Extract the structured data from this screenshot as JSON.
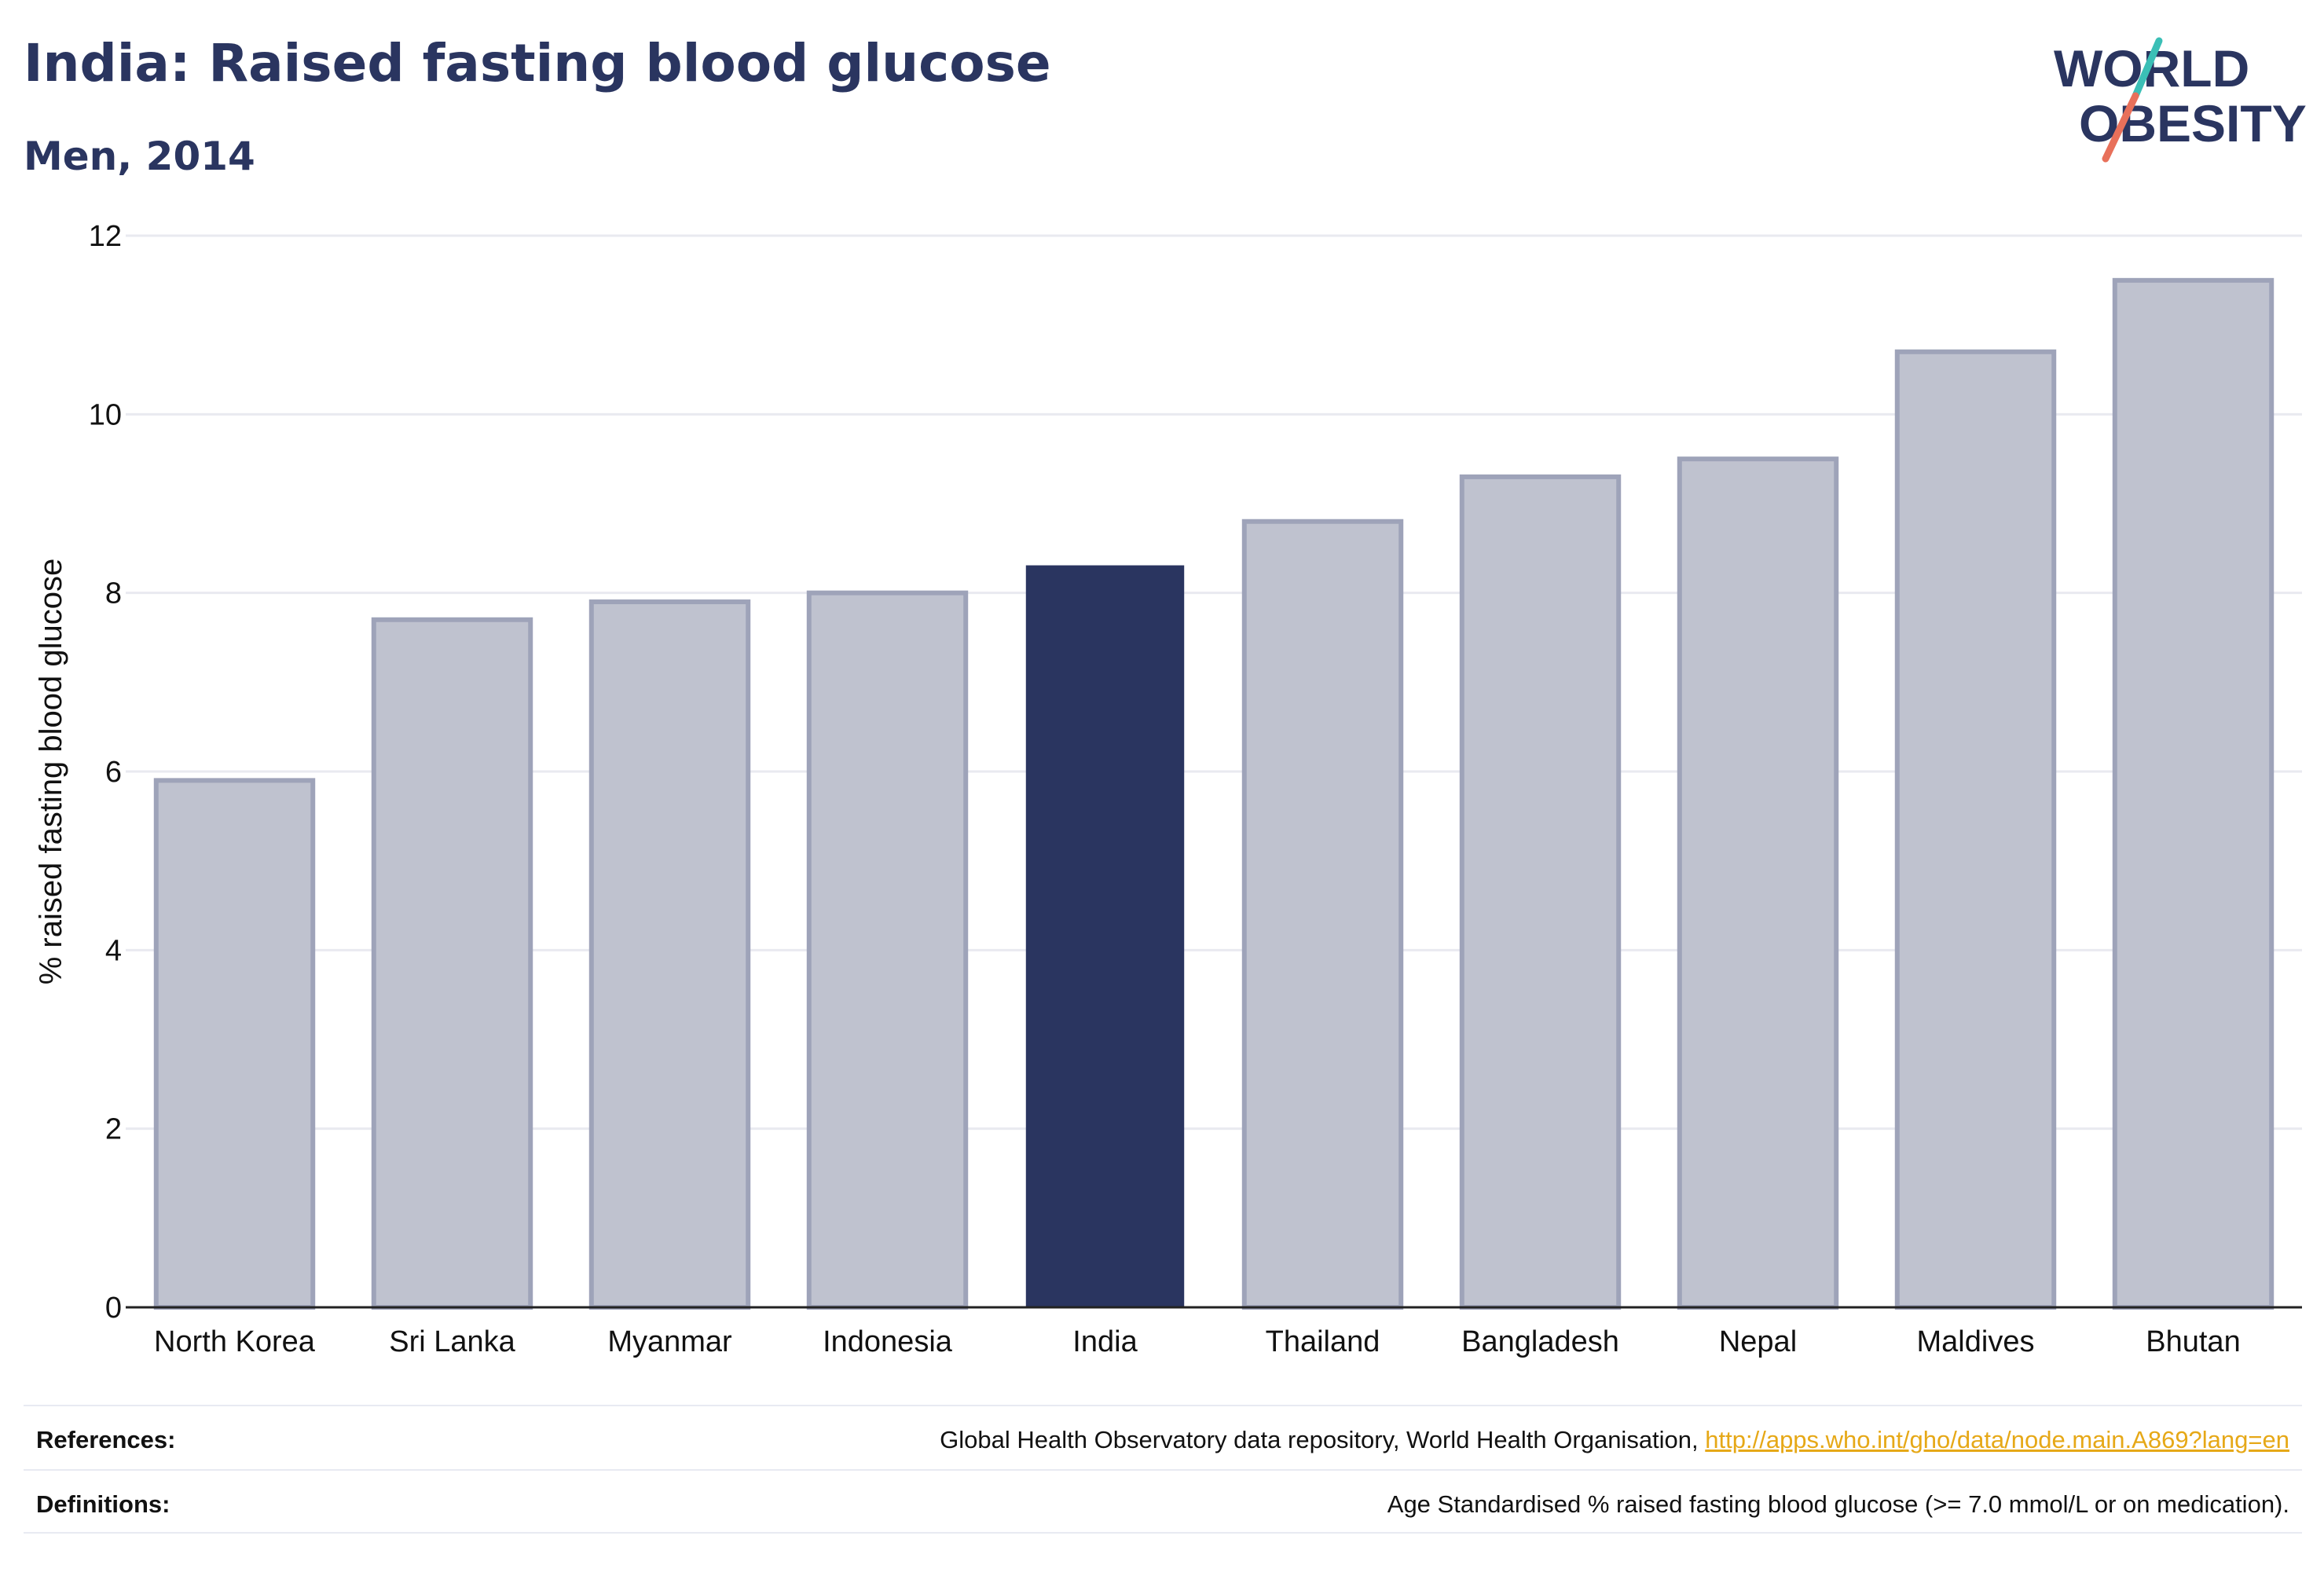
{
  "title": "India: Raised fasting blood glucose",
  "subtitle": "Men, 2014",
  "logo": {
    "line1": "WORLD",
    "line2": "OBESITY",
    "accent_teal": "#3bbfb6",
    "accent_coral": "#e8705a"
  },
  "colors": {
    "highlight": "#2a3560",
    "bar": "#bfc2cf",
    "bar_edge": "#9ea3b9",
    "grid": "#e9eaf0",
    "axis": "#222222"
  },
  "chart_data": {
    "type": "bar",
    "categories": [
      "North Korea",
      "Sri Lanka",
      "Myanmar",
      "Indonesia",
      "India",
      "Thailand",
      "Bangladesh",
      "Nepal",
      "Maldives",
      "Bhutan"
    ],
    "values": [
      5.9,
      7.7,
      7.9,
      8.0,
      8.3,
      8.8,
      9.3,
      9.5,
      10.7,
      11.5
    ],
    "highlight": "India",
    "ylabel": "% raised fasting blood glucose",
    "ylim": [
      0,
      12
    ],
    "yticks": [
      0,
      2,
      4,
      6,
      8,
      10,
      12
    ],
    "grid": true
  },
  "footer": {
    "references_label": "References:",
    "references_text": "Global Health Observatory data repository, World Health Organisation,",
    "references_link": "http://apps.who.int/gho/data/node.main.A869?lang=en",
    "definitions_label": "Definitions:",
    "definitions_text": "Age Standardised % raised fasting blood glucose (>= 7.0 mmol/L or on medication)."
  }
}
